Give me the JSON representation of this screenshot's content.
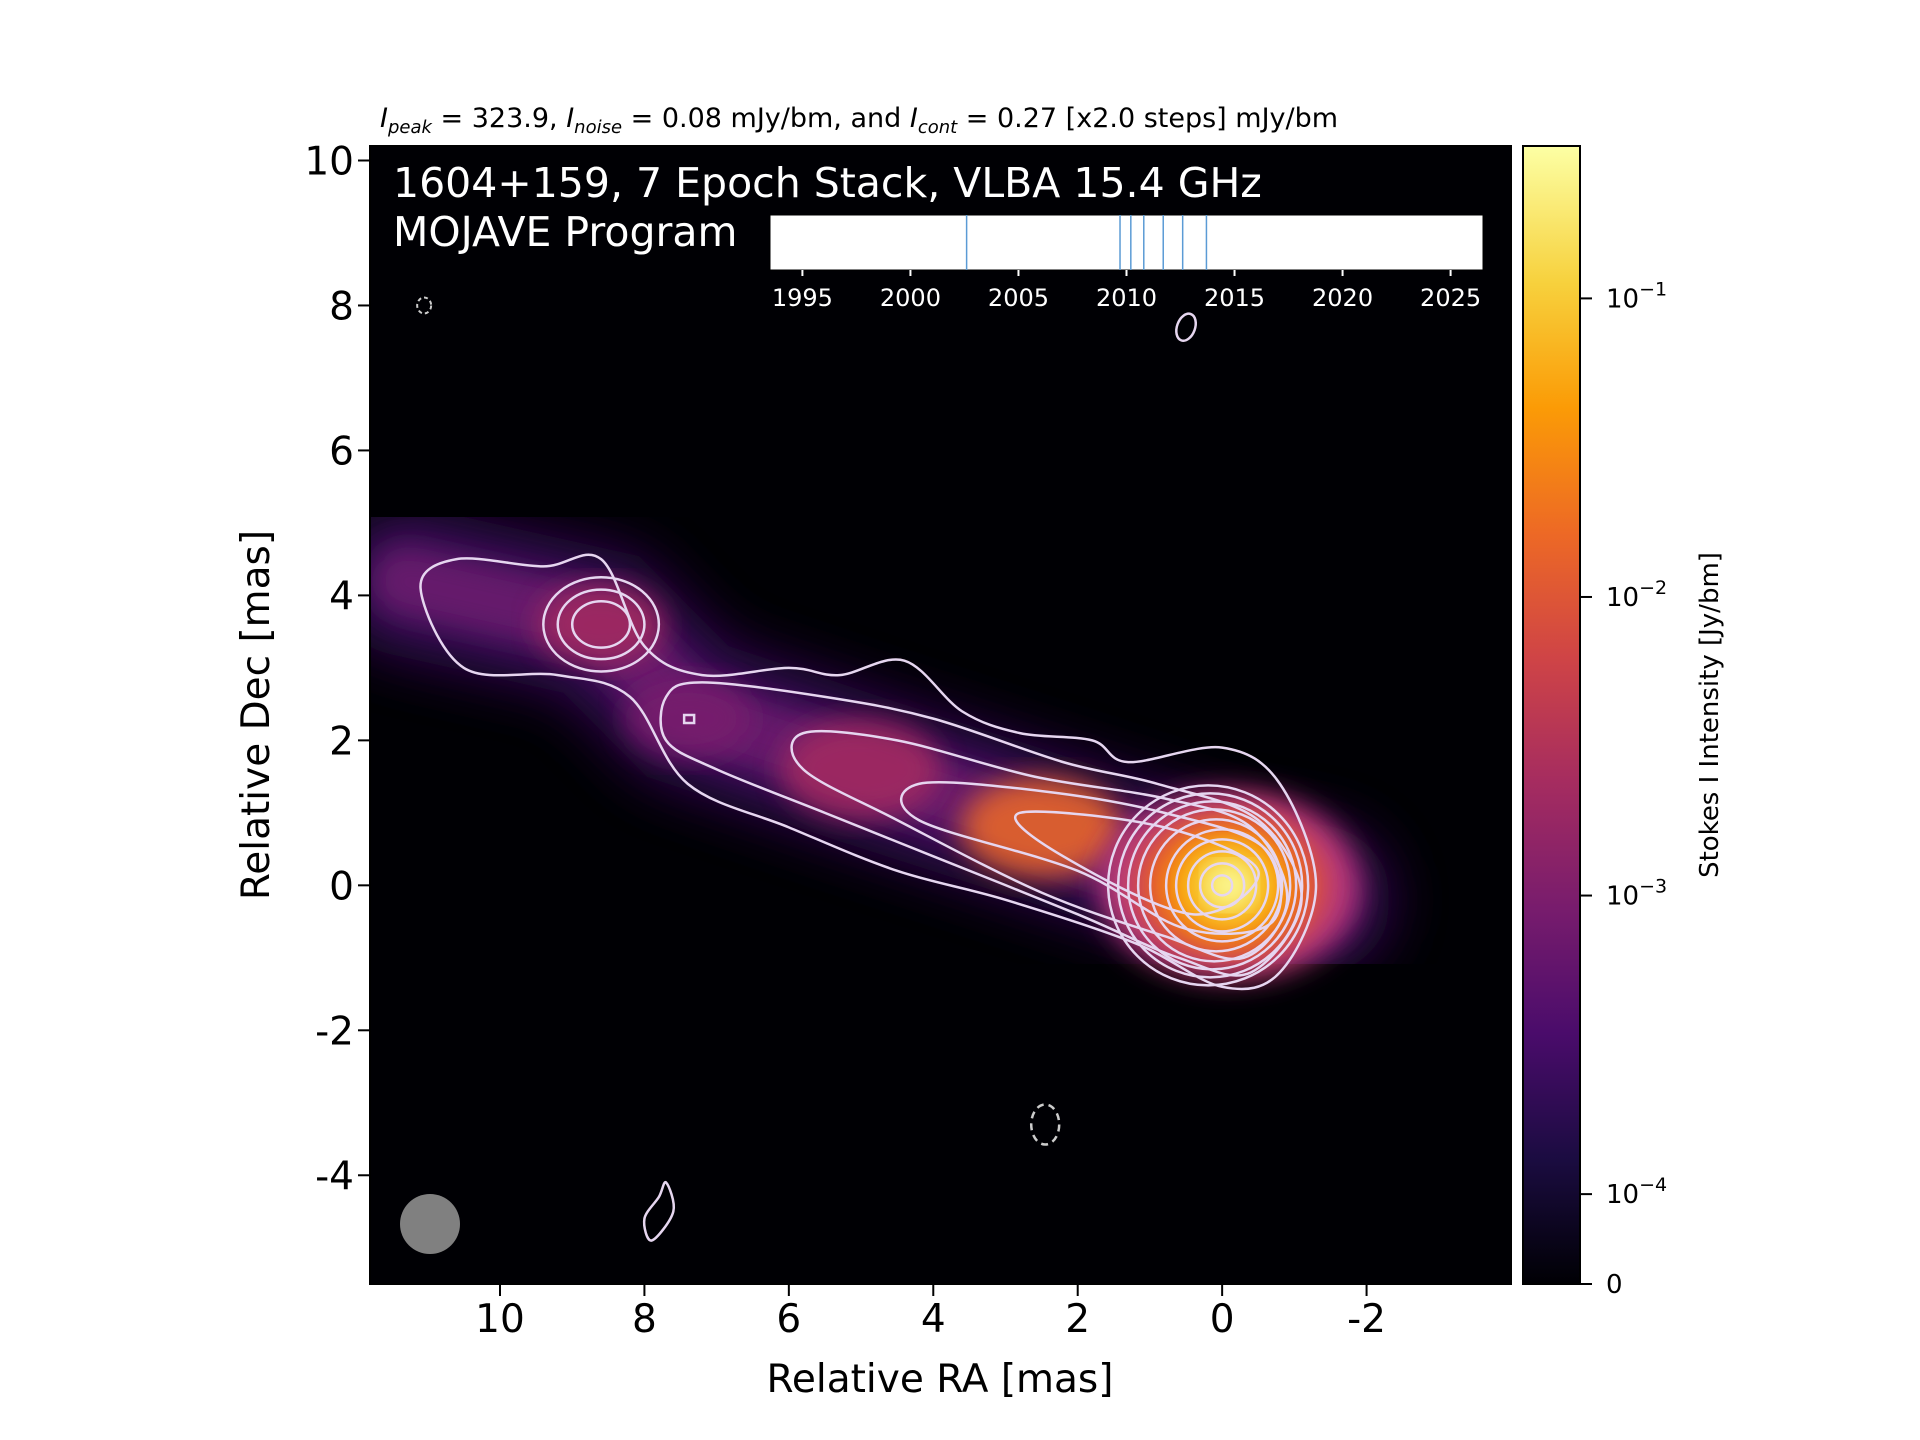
{
  "chart_data": {
    "type": "heatmap",
    "header_line": {
      "parts": [
        {
          "sym": "I",
          "sub": "peak",
          "text": " = 323.9, "
        },
        {
          "sym": "I",
          "sub": "noise",
          "text": " = 0.08 mJy/bm, and "
        },
        {
          "sym": "I",
          "sub": "cont",
          "text": " = 0.27 [x2.0 steps] mJy/bm"
        }
      ]
    },
    "overlay_title": "1604+159, 7 Epoch Stack, VLBA 15.4 GHz",
    "overlay_subtitle": "MOJAVE Program",
    "xlabel": "Relative RA [mas]",
    "ylabel": "Relative Dec [mas]",
    "xlim": [
      11.8,
      -4.0
    ],
    "ylim": [
      -5.5,
      10.2
    ],
    "x_ticks": [
      10,
      8,
      6,
      4,
      2,
      0,
      -2
    ],
    "x_tick_labels": [
      "10",
      "8",
      "6",
      "4",
      "2",
      "0",
      "-2"
    ],
    "y_ticks": [
      10,
      8,
      6,
      4,
      2,
      0,
      -2,
      -4
    ],
    "y_tick_labels": [
      "10",
      "8",
      "6",
      "4",
      "2",
      "0",
      "-2",
      "-4"
    ],
    "colorbar": {
      "label": "Stokes I Intensity [Jy/bm]",
      "scale": "log",
      "colormap": "inferno",
      "ticks": [
        "10^-1",
        "10^-2",
        "10^-3",
        "10^-4",
        "0"
      ],
      "tick_labels": [
        {
          "base": "10",
          "exp": "−1",
          "value": 0.1
        },
        {
          "base": "10",
          "exp": "−2",
          "value": 0.01
        },
        {
          "base": "10",
          "exp": "−3",
          "value": 0.001
        },
        {
          "base": "10",
          "exp": "−4",
          "value": 0.0001
        },
        {
          "base": "0",
          "exp": "",
          "value": 0
        }
      ],
      "colors": [
        "#000004",
        "#1b0c41",
        "#4a0c6b",
        "#781c6d",
        "#a52c60",
        "#cf4446",
        "#ed6925",
        "#fb9b06",
        "#f7d13d",
        "#fcffa4"
      ]
    },
    "epoch_timeline": {
      "year_range": [
        1993.5,
        2026.5
      ],
      "year_ticks": [
        1995,
        2000,
        2005,
        2010,
        2015,
        2020,
        2025
      ],
      "year_tick_labels": [
        "1995",
        "2000",
        "2005",
        "2010",
        "2015",
        "2020",
        "2025"
      ],
      "epochs": [
        2002.6,
        2009.7,
        2010.2,
        2010.8,
        2011.7,
        2012.6,
        2013.7
      ],
      "line_color": "#5b9bd5"
    },
    "emission_components": [
      {
        "name": "core",
        "ra": 0.0,
        "dec": 0.0,
        "peak_jy": 0.3239
      },
      {
        "name": "jet",
        "ra": 2.5,
        "dec": 0.8,
        "peak_jy": 0.006
      },
      {
        "name": "jet",
        "ra": 5.0,
        "dec": 1.6,
        "peak_jy": 0.0025
      },
      {
        "name": "knot",
        "ra": 7.4,
        "dec": 2.3,
        "peak_jy": 0.0015
      },
      {
        "name": "knot",
        "ra": 8.6,
        "dec": 3.6,
        "peak_jy": 0.003
      }
    ],
    "beam": {
      "color": "#808080"
    },
    "contour_color": "#e6d6f0",
    "peak_mjy": 323.9,
    "noise_mjy": 0.08,
    "lowest_contour_mjy": 0.27,
    "contour_step": 2.0
  }
}
